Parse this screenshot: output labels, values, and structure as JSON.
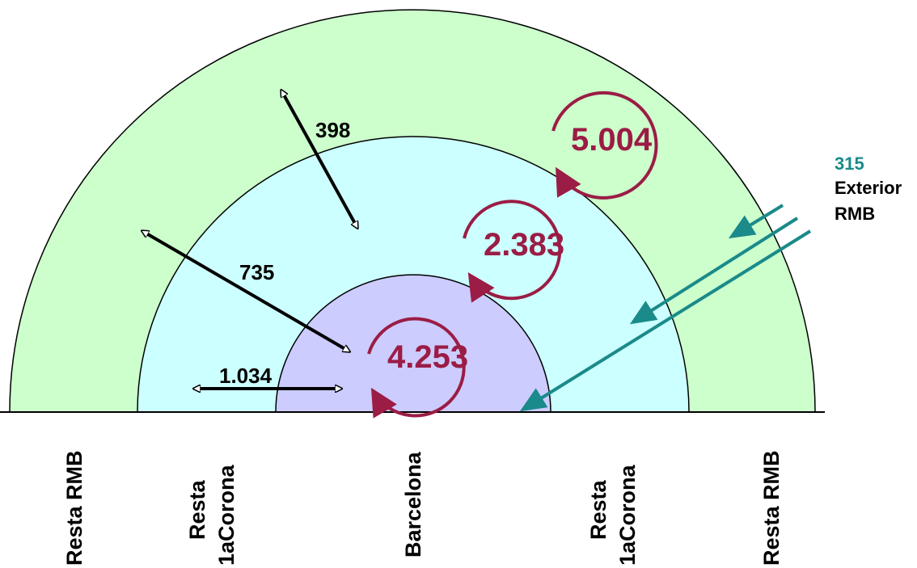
{
  "flows": {
    "outer_to_barcelona": "398",
    "first_to_barcelona": "735",
    "within_barcelona_side": "1.034",
    "internal_outer": "5.004",
    "internal_first": "2.383",
    "internal_barcelona": "4.253"
  },
  "exterior": {
    "value": "315",
    "label_line1": "Exterior",
    "label_line2": "RMB"
  },
  "zones": {
    "left_outer": "Resta RMB",
    "left_first_line1": "Resta",
    "left_first_line2": "1aCorona",
    "center": "Barcelona",
    "right_first_line1": "Resta",
    "right_first_line2": "1aCorona",
    "right_outer": "Resta RMB"
  },
  "colors": {
    "outer_ring": "#ccffcc",
    "first_ring": "#ccffff",
    "center": "#ccccff",
    "internal_arrow": "#9b1c45",
    "exterior_arrow": "#1a8a8a"
  }
}
